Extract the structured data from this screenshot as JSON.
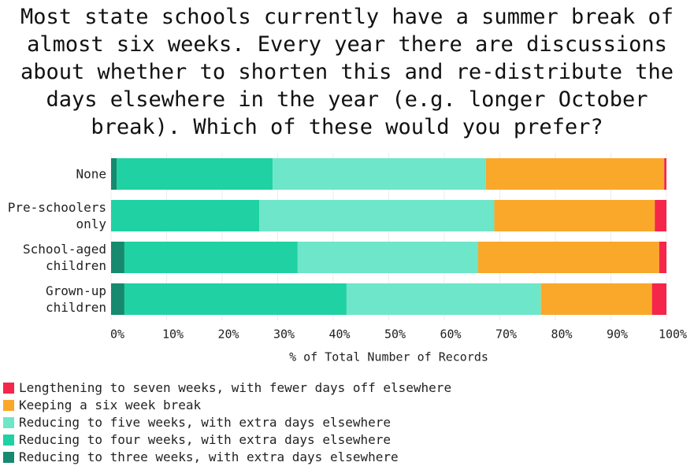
{
  "chart_data": {
    "type": "stacked-barh",
    "title": "Most state schools currently have a summer break of almost six weeks. Every year there are discussions about whether to shorten this and re-distribute the days elsewhere in the year (e.g. longer October break). Which of these would you prefer?",
    "x_label": "% of Total Number of Records",
    "categories": [
      "None",
      "Pre-schoolers only",
      "School-aged children",
      "Grown-up children"
    ],
    "series": [
      {
        "name": "Lengthening to seven weeks, with fewer days off elsewhere",
        "color": "#f5264a",
        "values": [
          0.4,
          2.1,
          1.3,
          2.6
        ]
      },
      {
        "name": "Keeping a six week break",
        "color": "#faa82a",
        "values": [
          32.1,
          28.9,
          32.6,
          20.0
        ]
      },
      {
        "name": "Reducing to five weeks, with extra days elsewhere",
        "color": "#6de6c9",
        "values": [
          38.4,
          42.3,
          32.5,
          35.0
        ]
      },
      {
        "name": "Reducing to four weeks, with extra days elsewhere",
        "color": "#1fd1a3",
        "values": [
          28.1,
          26.7,
          31.2,
          40.0
        ]
      },
      {
        "name": "Reducing to three weeks, with extra days elsewhere",
        "color": "#16896e",
        "values": [
          1.0,
          0,
          2.4,
          2.4
        ]
      }
    ],
    "xlim": [
      0,
      100
    ],
    "xticks": [
      {
        "value": 0,
        "label": "0%"
      },
      {
        "value": 10,
        "label": "10%"
      },
      {
        "value": 20,
        "label": "20%"
      },
      {
        "value": 30,
        "label": "30%"
      },
      {
        "value": 40,
        "label": "40%"
      },
      {
        "value": 50,
        "label": "50%"
      },
      {
        "value": 60,
        "label": "60%"
      },
      {
        "value": 70,
        "label": "70%"
      },
      {
        "value": 80,
        "label": "80%"
      },
      {
        "value": 90,
        "label": "90%"
      },
      {
        "value": 100,
        "label": "100%"
      }
    ],
    "grid": true
  }
}
